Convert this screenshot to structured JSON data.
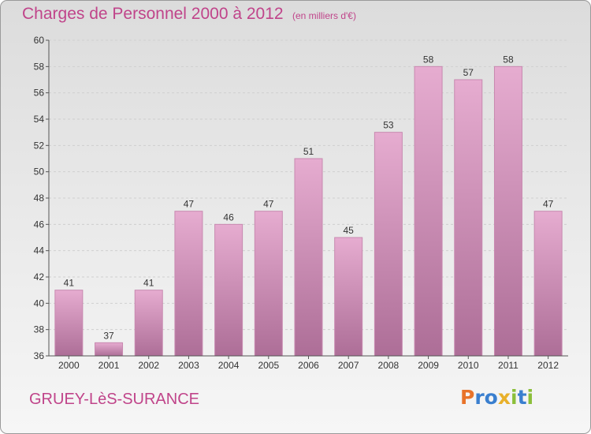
{
  "header": {
    "title": "Charges de Personnel 2000 à 2012",
    "unit_note": "(en milliers d'€)"
  },
  "footer": {
    "town": "GRUEY-LèS-SURANCE",
    "logo_text": "Proxiti",
    "logo_letters": [
      {
        "ch": "P",
        "color": "#e8732a"
      },
      {
        "ch": "r",
        "color": "#3a7fcf"
      },
      {
        "ch": "o",
        "color": "#3a7fcf"
      },
      {
        "ch": "x",
        "color": "#e8b02a"
      },
      {
        "ch": "i",
        "color": "#8bbf3a"
      },
      {
        "ch": "t",
        "color": "#3a7fcf"
      },
      {
        "ch": "i",
        "color": "#8bbf3a"
      }
    ]
  },
  "colors": {
    "accent": "#c0448a",
    "bar_light": "#e6acd0",
    "bar_dark": "#ad6e97",
    "bar_edge": "#c889b0",
    "grid": "#cfcfcf"
  },
  "chart_data": {
    "type": "bar",
    "title": "Charges de Personnel 2000 à 2012",
    "subtitle": "(en milliers d'€)",
    "xlabel": "",
    "ylabel": "",
    "categories": [
      "2000",
      "2001",
      "2002",
      "2003",
      "2004",
      "2005",
      "2006",
      "2007",
      "2008",
      "2009",
      "2010",
      "2011",
      "2012"
    ],
    "values": [
      41,
      37,
      41,
      47,
      46,
      47,
      51,
      45,
      53,
      58,
      57,
      58,
      47
    ],
    "ylim": [
      36,
      60
    ],
    "yticks": [
      36,
      38,
      40,
      42,
      44,
      46,
      48,
      50,
      52,
      54,
      56,
      58,
      60
    ],
    "grid": true,
    "data_labels": true
  }
}
